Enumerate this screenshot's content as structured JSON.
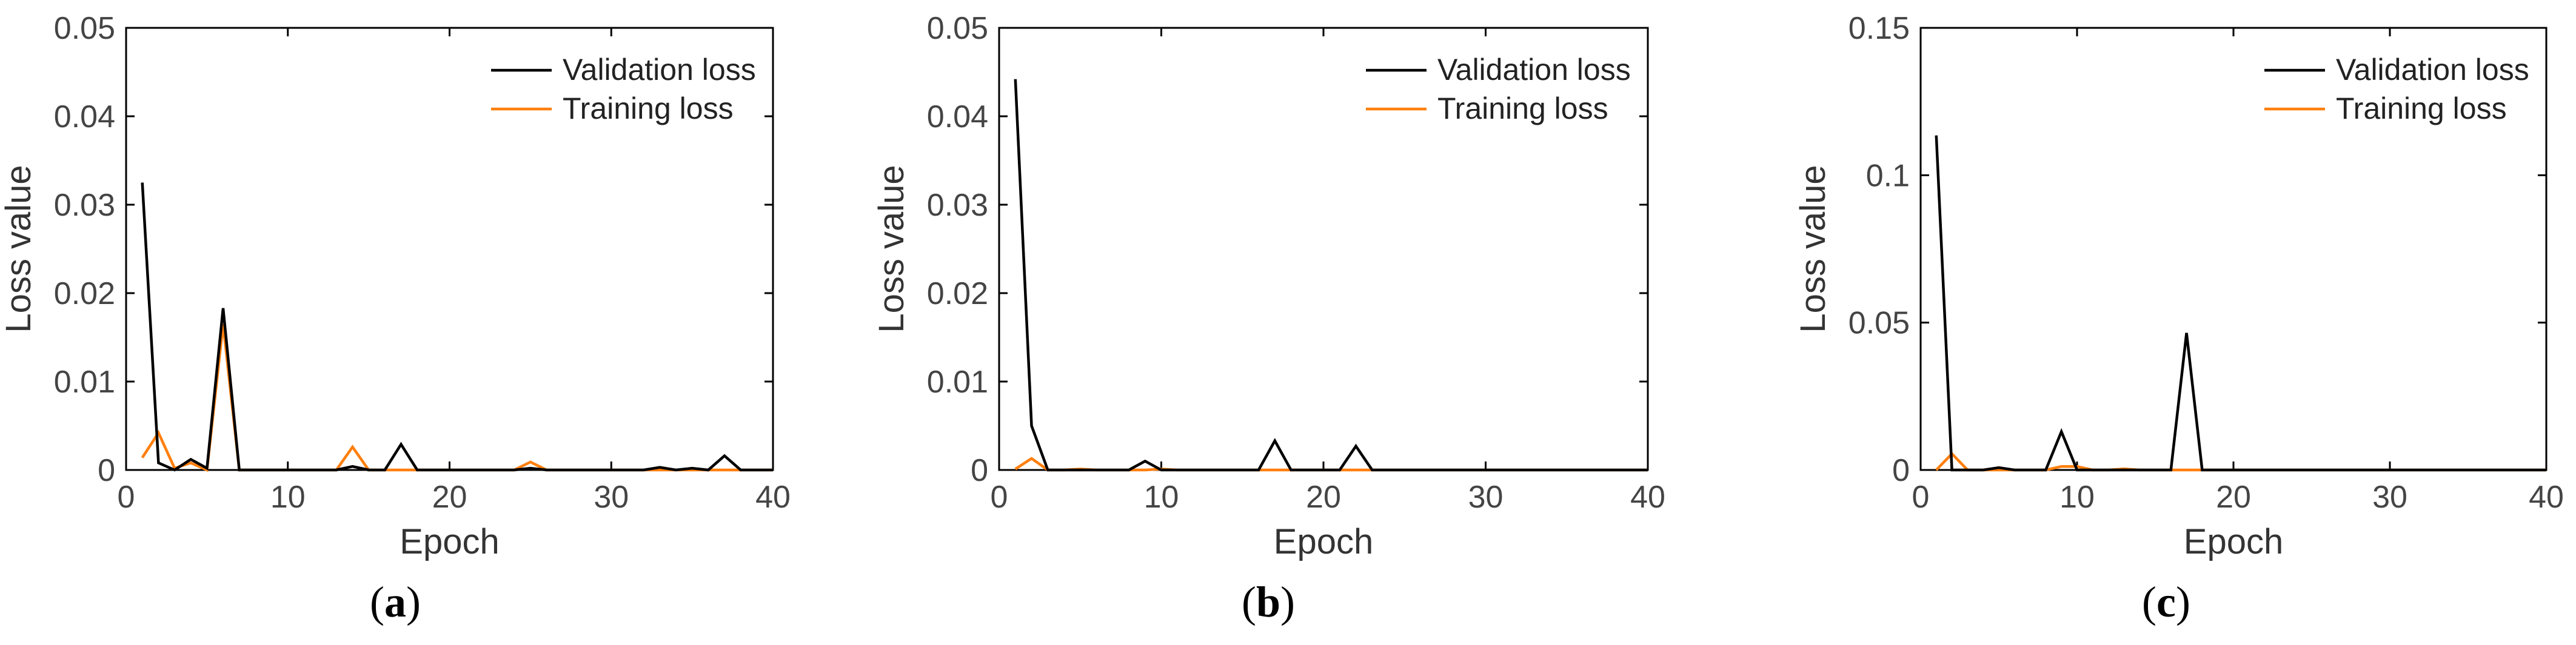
{
  "figure": {
    "panel_labels": [
      "(a)",
      "(b)",
      "(c)"
    ]
  },
  "colors": {
    "validation": "#000000",
    "training": "#ff7f0e"
  },
  "chart_data": [
    {
      "type": "line",
      "panel": "(a)",
      "xlabel": "Epoch",
      "ylabel": "Loss value",
      "xlim": [
        0,
        40
      ],
      "ylim": [
        0,
        0.05
      ],
      "xticks": [
        0,
        10,
        20,
        30,
        40
      ],
      "xtick_labels": [
        "0",
        "10",
        "20",
        "30",
        "40"
      ],
      "yticks": [
        0,
        0.01,
        0.02,
        0.03,
        0.04,
        0.05
      ],
      "ytick_labels": [
        "0",
        "0.01",
        "0.02",
        "0.03",
        "0.04",
        "0.05"
      ],
      "legend": [
        "Validation loss",
        "Training loss"
      ],
      "legend_position": "top-right",
      "series": [
        {
          "name": "Validation loss",
          "x": [
            1,
            2,
            3,
            4,
            5,
            6,
            7,
            8,
            9,
            10,
            11,
            12,
            13,
            14,
            15,
            16,
            17,
            18,
            19,
            20,
            21,
            22,
            23,
            24,
            25,
            26,
            27,
            28,
            29,
            30,
            31,
            32,
            33,
            34,
            35,
            36,
            37,
            38,
            39,
            40
          ],
          "y": [
            0.0325,
            0.0008,
            0,
            0.0012,
            0.0002,
            0.0183,
            0,
            0,
            0,
            0,
            0,
            0,
            0,
            0.0004,
            0,
            0,
            0.0029,
            0,
            0,
            0,
            0,
            0,
            0,
            0,
            0.0002,
            0,
            0,
            0,
            0,
            0,
            0,
            0,
            0.0003,
            0,
            0.0002,
            0,
            0.0016,
            0,
            0,
            0
          ]
        },
        {
          "name": "Training loss",
          "x": [
            1,
            2,
            3,
            4,
            5,
            6,
            7,
            8,
            9,
            10,
            11,
            12,
            13,
            14,
            15,
            16,
            17,
            18,
            19,
            20,
            21,
            22,
            23,
            24,
            25,
            26,
            27,
            28,
            29,
            30,
            31,
            32,
            33,
            34,
            35,
            36,
            37,
            38,
            39,
            40
          ],
          "y": [
            0.0014,
            0.0042,
            0.0002,
            0.0008,
            0,
            0.0165,
            0,
            0,
            0,
            0,
            0,
            0,
            0,
            0.0026,
            0,
            0,
            0,
            0,
            0,
            0,
            0,
            0,
            0,
            0,
            0.0009,
            0,
            0,
            0,
            0,
            0,
            0,
            0,
            0,
            0,
            0,
            0,
            0,
            0,
            0,
            0
          ]
        }
      ]
    },
    {
      "type": "line",
      "panel": "(b)",
      "xlabel": "Epoch",
      "ylabel": "Loss value",
      "xlim": [
        0,
        40
      ],
      "ylim": [
        0,
        0.05
      ],
      "xticks": [
        0,
        10,
        20,
        30,
        40
      ],
      "xtick_labels": [
        "0",
        "10",
        "20",
        "30",
        "40"
      ],
      "yticks": [
        0,
        0.01,
        0.02,
        0.03,
        0.04,
        0.05
      ],
      "ytick_labels": [
        "0",
        "0.01",
        "0.02",
        "0.03",
        "0.04",
        "0.05"
      ],
      "legend": [
        "Validation loss",
        "Training loss"
      ],
      "legend_position": "top-right",
      "series": [
        {
          "name": "Validation loss",
          "x": [
            1,
            2,
            3,
            4,
            5,
            6,
            7,
            8,
            9,
            10,
            11,
            12,
            13,
            14,
            15,
            16,
            17,
            18,
            19,
            20,
            21,
            22,
            23,
            24,
            25,
            26,
            27,
            28,
            29,
            30,
            31,
            32,
            33,
            34,
            35,
            36,
            37,
            38,
            39,
            40
          ],
          "y": [
            0.0442,
            0.005,
            0,
            0,
            0,
            0,
            0,
            0,
            0.001,
            0,
            0,
            0,
            0,
            0,
            0,
            0,
            0.0033,
            0,
            0,
            0,
            0,
            0.0027,
            0,
            0,
            0,
            0,
            0,
            0,
            0,
            0,
            0,
            0,
            0,
            0,
            0,
            0,
            0,
            0,
            0,
            0
          ]
        },
        {
          "name": "Training loss",
          "x": [
            1,
            2,
            3,
            4,
            5,
            6,
            7,
            8,
            9,
            10,
            11,
            12,
            13,
            14,
            15,
            16,
            17,
            18,
            19,
            20,
            21,
            22,
            23,
            24,
            25,
            26,
            27,
            28,
            29,
            30,
            31,
            32,
            33,
            34,
            35,
            36,
            37,
            38,
            39,
            40
          ],
          "y": [
            0.0001,
            0.0013,
            0,
            0,
            0.0001,
            0,
            0,
            0,
            0,
            0.0001,
            0,
            0,
            0,
            0,
            0,
            0,
            0,
            0,
            0,
            0,
            0,
            0,
            0,
            0,
            0,
            0,
            0,
            0,
            0,
            0,
            0,
            0,
            0,
            0,
            0,
            0,
            0,
            0,
            0,
            0
          ]
        }
      ]
    },
    {
      "type": "line",
      "panel": "(c)",
      "xlabel": "Epoch",
      "ylabel": "Loss value",
      "xlim": [
        0,
        40
      ],
      "ylim": [
        0,
        0.15
      ],
      "xticks": [
        0,
        10,
        20,
        30,
        40
      ],
      "xtick_labels": [
        "0",
        "10",
        "20",
        "30",
        "40"
      ],
      "yticks": [
        0,
        0.05,
        0.1,
        0.15
      ],
      "ytick_labels": [
        "0",
        "0.05",
        "0.1",
        "0.15"
      ],
      "legend": [
        "Validation loss",
        "Training loss"
      ],
      "legend_position": "top-right",
      "series": [
        {
          "name": "Validation loss",
          "x": [
            1,
            2,
            3,
            4,
            5,
            6,
            7,
            8,
            9,
            10,
            11,
            12,
            13,
            14,
            15,
            16,
            17,
            18,
            19,
            20,
            21,
            22,
            23,
            24,
            25,
            26,
            27,
            28,
            29,
            30,
            31,
            32,
            33,
            34,
            35,
            36,
            37,
            38,
            39,
            40
          ],
          "y": [
            0.1135,
            0,
            0,
            0,
            0.0008,
            0,
            0,
            0,
            0.013,
            0,
            0,
            0,
            0,
            0,
            0,
            0,
            0.0465,
            0,
            0,
            0,
            0,
            0,
            0,
            0,
            0,
            0,
            0,
            0,
            0,
            0,
            0,
            0,
            0,
            0,
            0,
            0,
            0,
            0,
            0,
            0
          ]
        },
        {
          "name": "Training loss",
          "x": [
            1,
            2,
            3,
            4,
            5,
            6,
            7,
            8,
            9,
            10,
            11,
            12,
            13,
            14,
            15,
            16,
            17,
            18,
            19,
            20,
            21,
            22,
            23,
            24,
            25,
            26,
            27,
            28,
            29,
            30,
            31,
            32,
            33,
            34,
            35,
            36,
            37,
            38,
            39,
            40
          ],
          "y": [
            0,
            0.0055,
            0,
            0,
            0,
            0,
            0,
            0,
            0.0012,
            0.0012,
            0,
            0,
            0.0004,
            0,
            0,
            0,
            0,
            0,
            0,
            0,
            0,
            0,
            0,
            0,
            0,
            0,
            0,
            0,
            0,
            0,
            0,
            0,
            0,
            0,
            0,
            0,
            0,
            0,
            0,
            0
          ]
        }
      ]
    }
  ]
}
